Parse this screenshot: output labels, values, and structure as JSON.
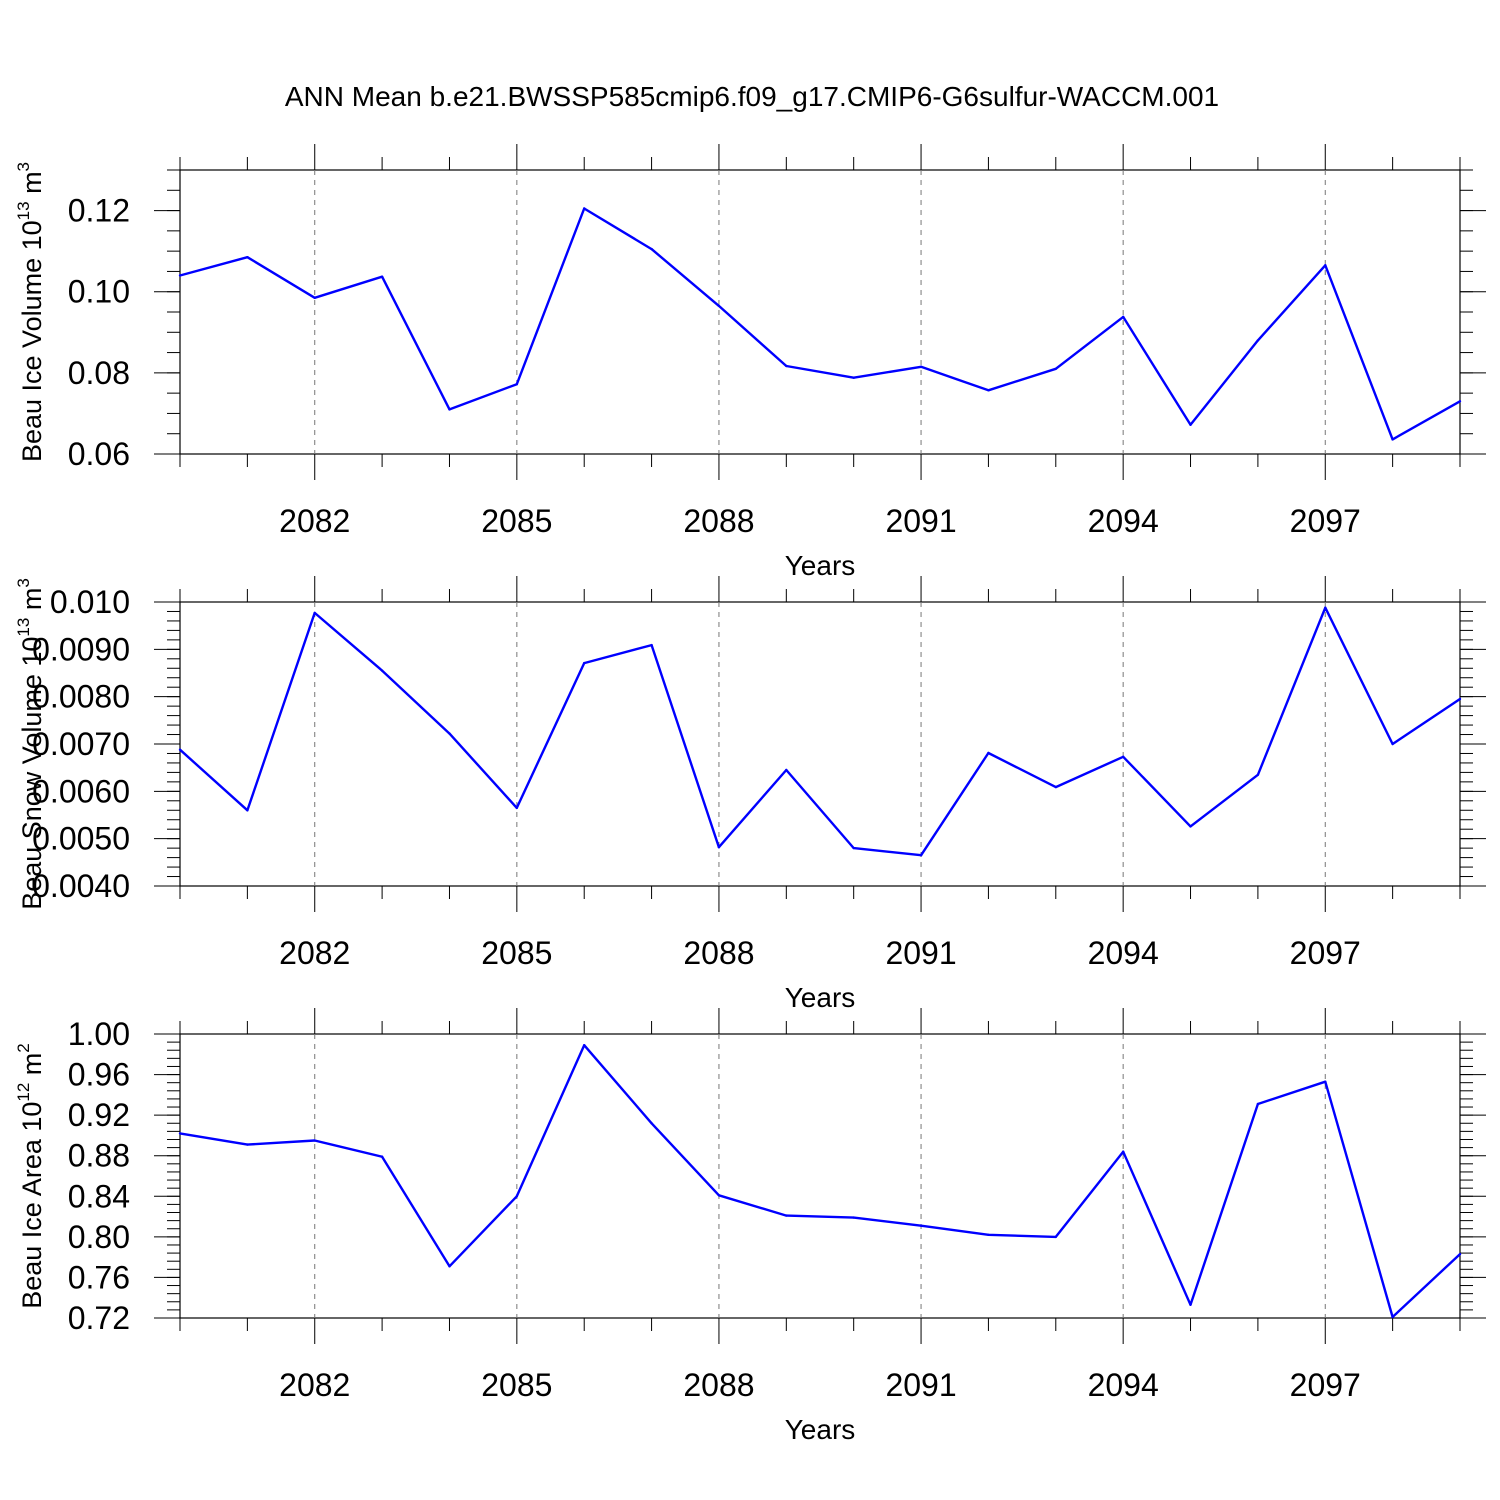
{
  "chart_data": {
    "title": "ANN Mean b.e21.BWSSP585cmip6.f09_g17.CMIP6-G6sulfur-WACCM.001",
    "x": [
      2080,
      2081,
      2082,
      2083,
      2084,
      2085,
      2086,
      2087,
      2088,
      2089,
      2090,
      2091,
      2092,
      2093,
      2094,
      2095,
      2096,
      2097,
      2098,
      2099
    ],
    "xlim": [
      2080,
      2099
    ],
    "xticks": [
      2082,
      2085,
      2088,
      2091,
      2094,
      2097
    ],
    "xtick_labels": [
      "2082",
      "2085",
      "2088",
      "2091",
      "2094",
      "2097"
    ],
    "line_color": "#0000ff",
    "panels": [
      {
        "type": "line",
        "name": "ice-volume",
        "xlabel": "Years",
        "ylabel": {
          "text": "Beau Ice Volume 10",
          "exp": "13",
          "unit": " m",
          "unit_exp": "3"
        },
        "ylim": [
          0.06,
          0.13
        ],
        "yticks": [
          0.06,
          0.08,
          0.1,
          0.12
        ],
        "ytick_labels": [
          "0.06",
          "0.08",
          "0.10",
          "0.12"
        ],
        "yminor": 0.005,
        "values": [
          0.104,
          0.1085,
          0.0985,
          0.1037,
          0.071,
          0.0772,
          0.1205,
          0.1105,
          0.0965,
          0.0817,
          0.0788,
          0.0815,
          0.0757,
          0.081,
          0.0938,
          0.0672,
          0.088,
          0.1065,
          0.0636,
          0.073
        ]
      },
      {
        "type": "line",
        "name": "snow-volume",
        "xlabel": "Years",
        "ylabel": {
          "text": "Beau Snow Volume 10",
          "exp": "13",
          "unit": " m",
          "unit_exp": "3"
        },
        "ylim": [
          0.004,
          0.01
        ],
        "yticks": [
          0.004,
          0.005,
          0.006,
          0.007,
          0.008,
          0.009,
          0.01
        ],
        "ytick_labels": [
          "0.0040",
          "0.0050",
          "0.0060",
          "0.0070",
          "0.0080",
          "0.0090",
          "0.010"
        ],
        "yminor": 0.0002,
        "values": [
          0.00688,
          0.0056,
          0.00977,
          0.00855,
          0.00722,
          0.00565,
          0.00871,
          0.00909,
          0.00482,
          0.00645,
          0.0048,
          0.00465,
          0.00681,
          0.00609,
          0.00673,
          0.00526,
          0.00635,
          0.00988,
          0.007,
          0.00795
        ]
      },
      {
        "type": "line",
        "name": "ice-area",
        "xlabel": "Years",
        "ylabel": {
          "text": "Beau Ice Area 10",
          "exp": "12",
          "unit": " m",
          "unit_exp": "2"
        },
        "ylim": [
          0.72,
          1.0
        ],
        "yticks": [
          0.72,
          0.76,
          0.8,
          0.84,
          0.88,
          0.92,
          0.96,
          1.0
        ],
        "ytick_labels": [
          "0.72",
          "0.76",
          "0.80",
          "0.84",
          "0.88",
          "0.92",
          "0.96",
          "1.00"
        ],
        "yminor": 0.008,
        "values": [
          0.902,
          0.891,
          0.895,
          0.879,
          0.771,
          0.84,
          0.989,
          0.912,
          0.841,
          0.821,
          0.819,
          0.811,
          0.802,
          0.8,
          0.884,
          0.733,
          0.931,
          0.953,
          0.721,
          0.783
        ]
      }
    ]
  }
}
